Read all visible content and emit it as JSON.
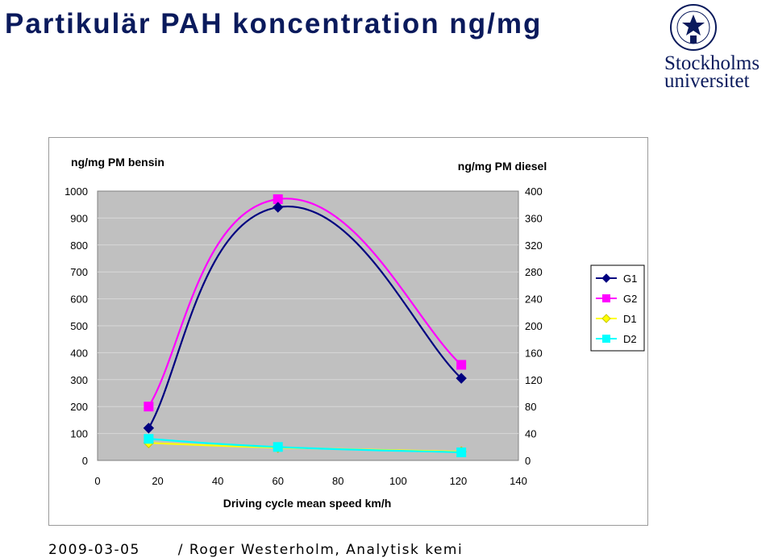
{
  "slide": {
    "title": "Partikulär PAH koncentration ng/mg",
    "footer_date": "2009-03-05",
    "footer_text": "/ Roger Westerholm, Analytisk kemi",
    "logo_line1": "Stockholms",
    "logo_line2": "universitet",
    "logo_seal_text": "UNIVERSITET STOCKHOLMS"
  },
  "chart_data": {
    "type": "line",
    "left_axis_title": "ng/mg PM bensin",
    "right_axis_title": "ng/mg PM diesel",
    "xlabel": "Driving cycle mean speed km/h",
    "xlim": [
      0,
      140
    ],
    "xticks": [
      "0",
      "20",
      "40",
      "60",
      "80",
      "100",
      "120",
      "140"
    ],
    "ylim_left": [
      0,
      1000
    ],
    "yticks_left": [
      "0",
      "100",
      "200",
      "300",
      "400",
      "500",
      "600",
      "700",
      "800",
      "900",
      "1000"
    ],
    "ylim_right": [
      0,
      400
    ],
    "yticks_right": [
      "0",
      "40",
      "80",
      "120",
      "160",
      "200",
      "240",
      "280",
      "320",
      "360",
      "400"
    ],
    "plot_background": "#c0c0c0",
    "grid": true,
    "legend_position": "right",
    "series": [
      {
        "name": "G1",
        "axis": "left",
        "color": "#000080",
        "marker": "diamond",
        "points": [
          [
            17,
            120
          ],
          [
            60,
            940
          ],
          [
            121,
            305
          ]
        ]
      },
      {
        "name": "G2",
        "axis": "left",
        "color": "#ff00ff",
        "marker": "square",
        "points": [
          [
            17,
            200
          ],
          [
            60,
            970
          ],
          [
            121,
            355
          ]
        ]
      },
      {
        "name": "D1",
        "axis": "right",
        "color": "#ffff00",
        "marker": "diamond",
        "points": [
          [
            17,
            26
          ],
          [
            60,
            19
          ],
          [
            121,
            13
          ]
        ]
      },
      {
        "name": "D2",
        "axis": "right",
        "color": "#00ffff",
        "marker": "square",
        "points": [
          [
            17,
            32
          ],
          [
            60,
            20
          ],
          [
            121,
            12
          ]
        ]
      }
    ]
  }
}
